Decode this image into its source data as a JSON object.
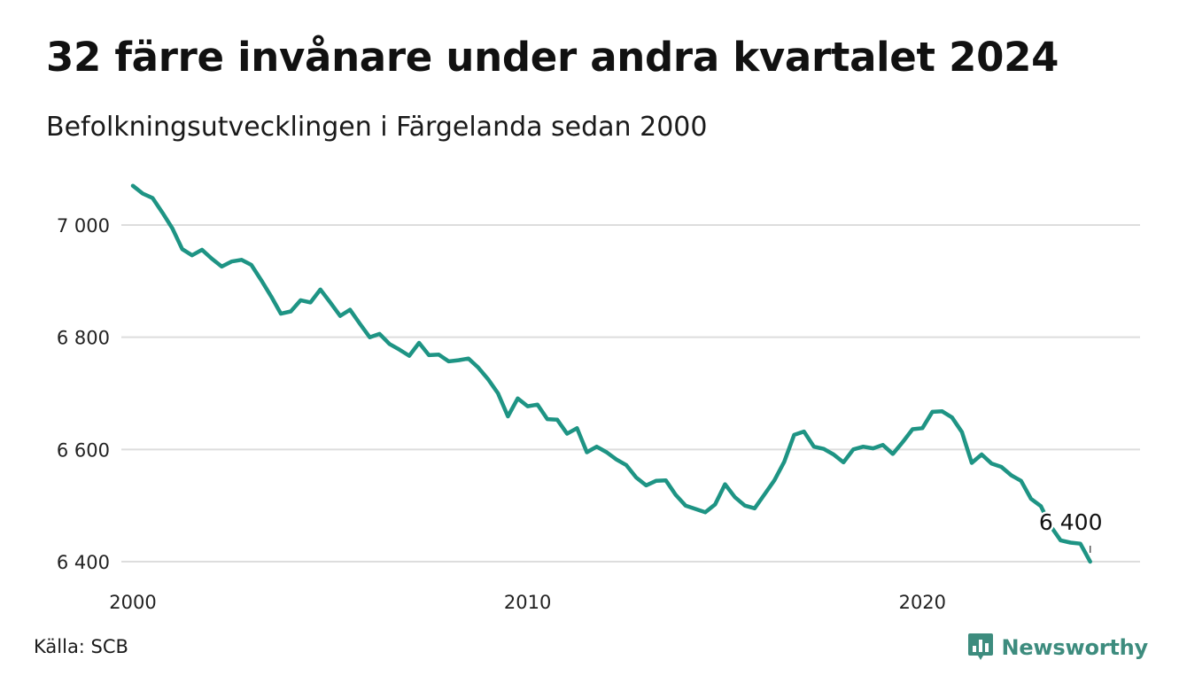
{
  "title": "32 färre invånare under andra kvartalet 2024",
  "subtitle": "Befolkningsutvecklingen i Färgelanda sedan 2000",
  "source": "Källa: SCB",
  "brand": {
    "name": "Newsworthy",
    "icon": "newsworthy-logo-icon",
    "color": "#3d8c7e"
  },
  "chart_data": {
    "type": "line",
    "title": "32 färre invånare under andra kvartalet 2024",
    "subtitle": "Befolkningsutvecklingen i Färgelanda sedan 2000",
    "xlabel": "",
    "ylabel": "",
    "x_ticks": [
      "2000",
      "2010",
      "2020"
    ],
    "y_ticks": [
      "6 400",
      "6 600",
      "6 800",
      "7 000"
    ],
    "ylim": [
      6400,
      7070
    ],
    "xlim": [
      2000.0,
      2024.75
    ],
    "grid": "horizontal",
    "line_color": "#1e9484",
    "end_label": "6 400",
    "series": [
      {
        "values": [
          {
            "x": 2000.0,
            "y": 7070
          },
          {
            "x": 2000.25,
            "y": 7056
          },
          {
            "x": 2000.5,
            "y": 7048
          },
          {
            "x": 2000.75,
            "y": 7022
          },
          {
            "x": 2001.0,
            "y": 6994
          },
          {
            "x": 2001.25,
            "y": 6957
          },
          {
            "x": 2001.5,
            "y": 6946
          },
          {
            "x": 2001.75,
            "y": 6956
          },
          {
            "x": 2002.0,
            "y": 6940
          },
          {
            "x": 2002.25,
            "y": 6926
          },
          {
            "x": 2002.5,
            "y": 6935
          },
          {
            "x": 2002.75,
            "y": 6938
          },
          {
            "x": 2003.0,
            "y": 6929
          },
          {
            "x": 2003.25,
            "y": 6902
          },
          {
            "x": 2003.5,
            "y": 6873
          },
          {
            "x": 2003.75,
            "y": 6842
          },
          {
            "x": 2004.0,
            "y": 6846
          },
          {
            "x": 2004.25,
            "y": 6866
          },
          {
            "x": 2004.5,
            "y": 6862
          },
          {
            "x": 2004.75,
            "y": 6885
          },
          {
            "x": 2005.0,
            "y": 6862
          },
          {
            "x": 2005.25,
            "y": 6838
          },
          {
            "x": 2005.5,
            "y": 6849
          },
          {
            "x": 2005.75,
            "y": 6824
          },
          {
            "x": 2006.0,
            "y": 6800
          },
          {
            "x": 2006.25,
            "y": 6806
          },
          {
            "x": 2006.5,
            "y": 6788
          },
          {
            "x": 2006.75,
            "y": 6778
          },
          {
            "x": 2007.0,
            "y": 6767
          },
          {
            "x": 2007.25,
            "y": 6790
          },
          {
            "x": 2007.5,
            "y": 6768
          },
          {
            "x": 2007.75,
            "y": 6769
          },
          {
            "x": 2008.0,
            "y": 6757
          },
          {
            "x": 2008.25,
            "y": 6759
          },
          {
            "x": 2008.5,
            "y": 6762
          },
          {
            "x": 2008.75,
            "y": 6746
          },
          {
            "x": 2009.0,
            "y": 6725
          },
          {
            "x": 2009.25,
            "y": 6700
          },
          {
            "x": 2009.5,
            "y": 6659
          },
          {
            "x": 2009.75,
            "y": 6691
          },
          {
            "x": 2010.0,
            "y": 6677
          },
          {
            "x": 2010.25,
            "y": 6680
          },
          {
            "x": 2010.5,
            "y": 6654
          },
          {
            "x": 2010.75,
            "y": 6653
          },
          {
            "x": 2011.0,
            "y": 6628
          },
          {
            "x": 2011.25,
            "y": 6638
          },
          {
            "x": 2011.5,
            "y": 6595
          },
          {
            "x": 2011.75,
            "y": 6605
          },
          {
            "x": 2012.0,
            "y": 6595
          },
          {
            "x": 2012.25,
            "y": 6582
          },
          {
            "x": 2012.5,
            "y": 6572
          },
          {
            "x": 2012.75,
            "y": 6550
          },
          {
            "x": 2013.0,
            "y": 6536
          },
          {
            "x": 2013.25,
            "y": 6544
          },
          {
            "x": 2013.5,
            "y": 6545
          },
          {
            "x": 2013.75,
            "y": 6519
          },
          {
            "x": 2014.0,
            "y": 6500
          },
          {
            "x": 2014.25,
            "y": 6494
          },
          {
            "x": 2014.5,
            "y": 6488
          },
          {
            "x": 2014.75,
            "y": 6502
          },
          {
            "x": 2015.0,
            "y": 6538
          },
          {
            "x": 2015.25,
            "y": 6515
          },
          {
            "x": 2015.5,
            "y": 6500
          },
          {
            "x": 2015.75,
            "y": 6495
          },
          {
            "x": 2016.0,
            "y": 6520
          },
          {
            "x": 2016.25,
            "y": 6545
          },
          {
            "x": 2016.5,
            "y": 6578
          },
          {
            "x": 2016.75,
            "y": 6626
          },
          {
            "x": 2017.0,
            "y": 6632
          },
          {
            "x": 2017.25,
            "y": 6605
          },
          {
            "x": 2017.5,
            "y": 6601
          },
          {
            "x": 2017.75,
            "y": 6591
          },
          {
            "x": 2018.0,
            "y": 6577
          },
          {
            "x": 2018.25,
            "y": 6600
          },
          {
            "x": 2018.5,
            "y": 6605
          },
          {
            "x": 2018.75,
            "y": 6602
          },
          {
            "x": 2019.0,
            "y": 6608
          },
          {
            "x": 2019.25,
            "y": 6592
          },
          {
            "x": 2019.5,
            "y": 6613
          },
          {
            "x": 2019.75,
            "y": 6636
          },
          {
            "x": 2020.0,
            "y": 6638
          },
          {
            "x": 2020.25,
            "y": 6667
          },
          {
            "x": 2020.5,
            "y": 6668
          },
          {
            "x": 2020.75,
            "y": 6657
          },
          {
            "x": 2021.0,
            "y": 6631
          },
          {
            "x": 2021.25,
            "y": 6576
          },
          {
            "x": 2021.5,
            "y": 6591
          },
          {
            "x": 2021.75,
            "y": 6575
          },
          {
            "x": 2022.0,
            "y": 6569
          },
          {
            "x": 2022.25,
            "y": 6554
          },
          {
            "x": 2022.5,
            "y": 6544
          },
          {
            "x": 2022.75,
            "y": 6512
          },
          {
            "x": 2023.0,
            "y": 6499
          },
          {
            "x": 2023.25,
            "y": 6463
          },
          {
            "x": 2023.5,
            "y": 6438
          },
          {
            "x": 2023.75,
            "y": 6434
          },
          {
            "x": 2024.0,
            "y": 6432
          },
          {
            "x": 2024.25,
            "y": 6400
          }
        ]
      }
    ]
  }
}
